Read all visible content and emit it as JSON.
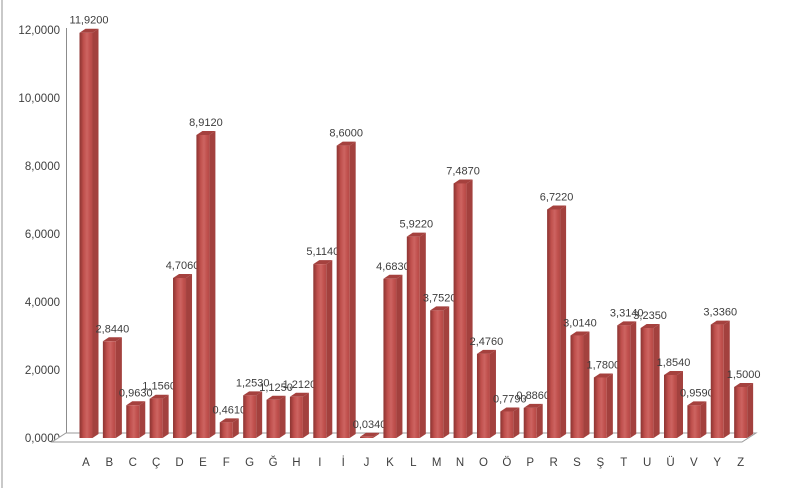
{
  "chart_data": {
    "type": "bar",
    "title": "",
    "xlabel": "",
    "ylabel": "",
    "categories": [
      "A",
      "B",
      "C",
      "Ç",
      "D",
      "E",
      "F",
      "G",
      "Ğ",
      "H",
      "I",
      "İ",
      "J",
      "K",
      "L",
      "M",
      "N",
      "O",
      "Ö",
      "P",
      "R",
      "S",
      "Ş",
      "T",
      "U",
      "Ü",
      "V",
      "Y",
      "Z"
    ],
    "values": [
      11.92,
      2.844,
      0.963,
      1.156,
      4.706,
      8.912,
      0.461,
      1.253,
      1.125,
      1.212,
      5.114,
      8.6,
      0.034,
      4.683,
      5.922,
      3.752,
      7.487,
      2.476,
      0.779,
      0.886,
      6.722,
      3.014,
      1.78,
      3.314,
      3.235,
      1.854,
      0.959,
      3.336,
      1.5
    ],
    "value_labels": [
      "11,9200",
      "2,8440",
      "0,9630",
      "1,1560",
      "4,7060",
      "8,9120",
      "0,4610",
      "1,2530",
      "1,1250",
      "1,2120",
      "5,1140",
      "8,6000",
      "0,0340",
      "4,6830",
      "5,9220",
      "3,7520",
      "7,4870",
      "2,4760",
      "0,7790",
      "0,8860",
      "6,7220",
      "3,0140",
      "1,7800",
      "3,3140",
      "3,2350",
      "1,8540",
      "0,9590",
      "3,3360",
      "1,5000"
    ],
    "y_tick_labels": [
      "0,0000",
      "2,0000",
      "4,0000",
      "6,0000",
      "8,0000",
      "10,0000",
      "12,0000"
    ],
    "y_tick_values": [
      0,
      2,
      4,
      6,
      8,
      10,
      12
    ],
    "ylim": [
      0,
      12
    ],
    "grid": false,
    "legend": false,
    "style": "3d-column",
    "colors": {
      "bar_face": "#C0504D",
      "bar_face_light": "#CD6461",
      "bar_edge_dark": "#8E3634",
      "bar_side": "#A3413E",
      "bar_top": "#A5413E",
      "axis_line": "#8c8c8c",
      "floor_border": "#9a9a9a",
      "floor_fill": "#ffffff",
      "value_label": "#3d3d3d",
      "axis_label": "#3f3f3f"
    }
  }
}
